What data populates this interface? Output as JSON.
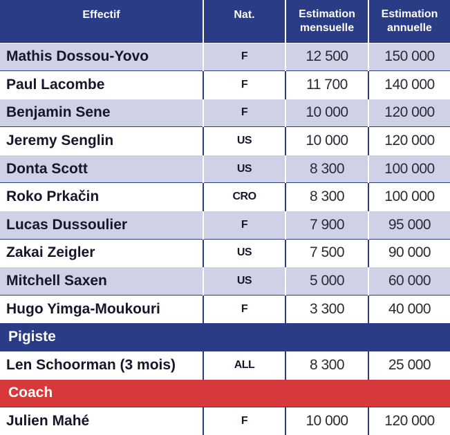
{
  "colors": {
    "header_bg": "#2a3c85",
    "row_band": "#cfd1e6",
    "row_plain": "#ffffff",
    "section_pigiste": "#2a3c85",
    "section_coach": "#d7393b",
    "grid_line": "#2a3c85"
  },
  "headers": {
    "effectif": "Effectif",
    "nat": "Nat.",
    "monthly_line1": "Estimation",
    "monthly_line2": "mensuelle",
    "yearly_line1": "Estimation",
    "yearly_line2": "annuelle"
  },
  "rows": [
    {
      "name": "Mathis Dossou-Yovo",
      "nat": "F",
      "monthly": "12 500",
      "yearly": "150 000"
    },
    {
      "name": "Paul Lacombe",
      "nat": "F",
      "monthly": "11 700",
      "yearly": "140 000"
    },
    {
      "name": "Benjamin Sene",
      "nat": "F",
      "monthly": "10 000",
      "yearly": "120 000"
    },
    {
      "name": "Jeremy Senglin",
      "nat": "US",
      "monthly": "10 000",
      "yearly": "120 000"
    },
    {
      "name": "Donta Scott",
      "nat": "US",
      "monthly": "8 300",
      "yearly": "100 000"
    },
    {
      "name": "Roko Prkačin",
      "nat": "CRO",
      "monthly": "8 300",
      "yearly": "100 000"
    },
    {
      "name": "Lucas Dussoulier",
      "nat": "F",
      "monthly": "7 900",
      "yearly": "95 000"
    },
    {
      "name": "Zakai Zeigler",
      "nat": "US",
      "monthly": "7 500",
      "yearly": "90 000"
    },
    {
      "name": "Mitchell Saxen",
      "nat": "US",
      "monthly": "5 000",
      "yearly": "60 000"
    },
    {
      "name": "Hugo Yimga-Moukouri",
      "nat": "F",
      "monthly": "3 300",
      "yearly": "40 000"
    }
  ],
  "pigiste": {
    "label": "Pigiste",
    "row": {
      "name": "Len Schoorman (3 mois)",
      "nat": "ALL",
      "monthly": "8 300",
      "yearly": "25 000"
    }
  },
  "coach": {
    "label": "Coach",
    "row": {
      "name": "Julien Mahé",
      "nat": "F",
      "monthly": "10 000",
      "yearly": "120 000"
    }
  }
}
